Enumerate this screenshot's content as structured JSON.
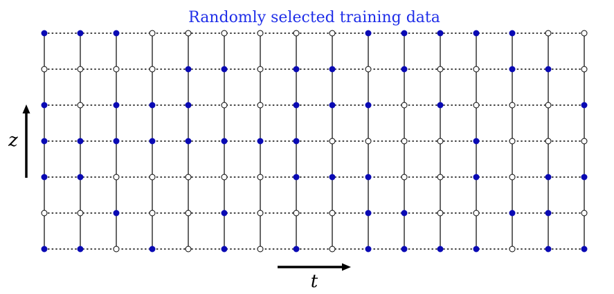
{
  "title": "Randomly selected training data",
  "colors": {
    "selected": "#0a0ab4",
    "grid_line": "#000000",
    "title": "#1f2ee8"
  },
  "axes": {
    "vertical_label": "z",
    "horizontal_label": "t"
  },
  "grid": {
    "columns": 16,
    "rows": 7,
    "selected": [
      [
        1,
        1,
        1,
        0,
        0,
        0,
        0,
        0,
        0,
        1,
        1,
        1,
        1,
        1,
        0,
        0
      ],
      [
        0,
        0,
        0,
        0,
        1,
        1,
        0,
        1,
        1,
        0,
        1,
        0,
        0,
        1,
        1,
        0
      ],
      [
        1,
        0,
        1,
        1,
        1,
        0,
        0,
        1,
        1,
        1,
        0,
        1,
        0,
        0,
        0,
        1
      ],
      [
        1,
        1,
        1,
        1,
        1,
        1,
        1,
        1,
        0,
        0,
        0,
        0,
        1,
        0,
        0,
        0
      ],
      [
        1,
        1,
        0,
        0,
        0,
        0,
        0,
        1,
        1,
        1,
        0,
        0,
        1,
        0,
        1,
        1
      ],
      [
        0,
        0,
        1,
        0,
        0,
        1,
        0,
        0,
        0,
        1,
        1,
        0,
        0,
        1,
        1,
        0
      ],
      [
        1,
        1,
        0,
        1,
        0,
        1,
        0,
        1,
        0,
        1,
        1,
        1,
        1,
        0,
        1,
        1
      ]
    ]
  }
}
